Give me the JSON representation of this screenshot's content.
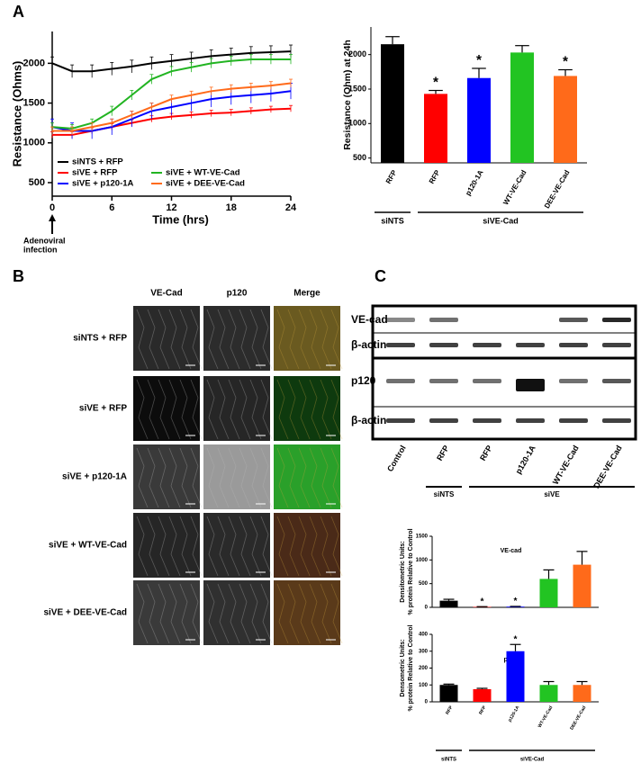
{
  "panels": [
    "A",
    "B",
    "C"
  ],
  "chart_data": [
    {
      "type": "line",
      "xlabel": "Time (hrs)",
      "ylabel": "Resistance (Ohms)",
      "x": [
        0,
        2,
        4,
        6,
        8,
        10,
        12,
        14,
        16,
        18,
        20,
        22,
        24
      ],
      "xlim": [
        0,
        24
      ],
      "xticks": [
        0,
        6,
        12,
        18,
        24
      ],
      "ylim": [
        330,
        2400
      ],
      "yticks": [
        500,
        1000,
        1500,
        2000
      ],
      "series": [
        {
          "name": "siNTS + RFP",
          "color": "#000000",
          "values": [
            2000,
            1900,
            1900,
            1930,
            1960,
            2000,
            2030,
            2060,
            2090,
            2110,
            2130,
            2140,
            2150
          ],
          "errors": [
            80,
            80,
            80,
            80,
            80,
            80,
            80,
            80,
            80,
            80,
            80,
            80,
            80
          ]
        },
        {
          "name": "siVE + RFP",
          "color": "#ff0000",
          "values": [
            1100,
            1100,
            1150,
            1200,
            1250,
            1300,
            1330,
            1350,
            1370,
            1380,
            1400,
            1420,
            1430
          ],
          "errors": [
            40,
            40,
            40,
            40,
            40,
            40,
            40,
            40,
            40,
            40,
            40,
            40,
            40
          ]
        },
        {
          "name": "siVE + p120-1A",
          "color": "#0000ff",
          "values": [
            1200,
            1150,
            1150,
            1200,
            1300,
            1400,
            1450,
            1500,
            1550,
            1580,
            1600,
            1620,
            1650
          ],
          "errors": [
            100,
            100,
            100,
            100,
            100,
            100,
            100,
            100,
            100,
            100,
            100,
            100,
            100
          ]
        },
        {
          "name": "siVE + WT-VE-Cad",
          "color": "#22b422",
          "values": [
            1200,
            1180,
            1250,
            1400,
            1600,
            1800,
            1900,
            1950,
            2000,
            2030,
            2050,
            2050,
            2050
          ],
          "errors": [
            50,
            50,
            50,
            60,
            60,
            60,
            60,
            60,
            60,
            60,
            60,
            60,
            60
          ]
        },
        {
          "name": "siVE + DEE-VE-Cad",
          "color": "#ff6a1a",
          "values": [
            1150,
            1150,
            1200,
            1250,
            1350,
            1450,
            1550,
            1600,
            1650,
            1680,
            1700,
            1720,
            1750
          ],
          "errors": [
            50,
            50,
            50,
            50,
            50,
            50,
            50,
            50,
            50,
            50,
            50,
            50,
            50
          ]
        }
      ],
      "annotation": [
        "Adenoviral",
        "infection"
      ]
    },
    {
      "type": "bar",
      "ylabel": "Resistance (Ohm) at 24h",
      "categories": [
        "RFP",
        "RFP",
        "p120-1A",
        "WT-VE-Cad",
        "DEE-VE-Cad"
      ],
      "values": [
        2150,
        1430,
        1660,
        2030,
        1690
      ],
      "errors": [
        110,
        50,
        140,
        100,
        90
      ],
      "colors": [
        "#000000",
        "#ff0000",
        "#0000ff",
        "#22c422",
        "#ff6a1a"
      ],
      "markers": [
        null,
        "*",
        "*",
        null,
        "*"
      ],
      "ylim": [
        430,
        2400
      ],
      "yticks": [
        500,
        1000,
        1500,
        2000,
        2500
      ],
      "groups": [
        {
          "label": "siNTS",
          "start": 0,
          "end": 0
        },
        {
          "label": "siVE-Cad",
          "start": 1,
          "end": 4
        }
      ]
    },
    {
      "type": "bar",
      "title": "VE-cad",
      "ylabel": [
        "Densitometric Units:",
        "% protein Relative to Control"
      ],
      "categories": [
        null,
        null,
        null,
        null,
        null
      ],
      "values": [
        140,
        10,
        15,
        600,
        900
      ],
      "errors": [
        30,
        5,
        5,
        190,
        280
      ],
      "colors": [
        "#000000",
        "#ff0000",
        "#0000ff",
        "#22c422",
        "#ff6a1a"
      ],
      "markers": [
        null,
        "*",
        "*",
        null,
        null
      ],
      "ylim": [
        0,
        1500
      ],
      "yticks": [
        0,
        500,
        1000,
        1500
      ]
    },
    {
      "type": "bar",
      "title": "p120",
      "ylabel": [
        "Densometric Units:",
        "% protein Relative to Control"
      ],
      "categories": [
        "RFP",
        "RFP",
        "p120-1A",
        "WT-VE-Cad",
        "DEE-VE-Cad"
      ],
      "values": [
        100,
        75,
        300,
        100,
        100
      ],
      "errors": [
        5,
        5,
        40,
        20,
        20
      ],
      "colors": [
        "#000000",
        "#ff0000",
        "#0000ff",
        "#22c422",
        "#ff6a1a"
      ],
      "markers": [
        null,
        null,
        "*",
        null,
        null
      ],
      "ylim": [
        0,
        400
      ],
      "yticks": [
        0,
        100,
        200,
        300,
        400
      ],
      "groups": [
        {
          "label": "siNTS",
          "start": 0,
          "end": 0
        },
        {
          "label": "siVE-Cad",
          "start": 1,
          "end": 4
        }
      ]
    }
  ],
  "microscopy": {
    "columns": [
      "VE-Cad",
      "p120",
      "Merge"
    ],
    "column_colors": [
      "#e02020",
      "#20b020",
      "#e8a000"
    ],
    "rows": [
      "siNTS + RFP",
      "siVE + RFP",
      "siVE + p120-1A",
      "siVE + WT-VE-Cad",
      "siVE + DEE-VE-Cad"
    ]
  },
  "blot": {
    "rows": [
      "VE-cad",
      "β-actin",
      "p120",
      "β-actin"
    ],
    "lanes": [
      "Control",
      "RFP",
      "RFP",
      "p120-1A",
      "WT-VE-Cad",
      "DEE-VE-Cad"
    ],
    "groups": [
      {
        "label": "siNTS",
        "start": 1,
        "end": 1
      },
      {
        "label": "siVE",
        "start": 2,
        "end": 5
      }
    ]
  }
}
